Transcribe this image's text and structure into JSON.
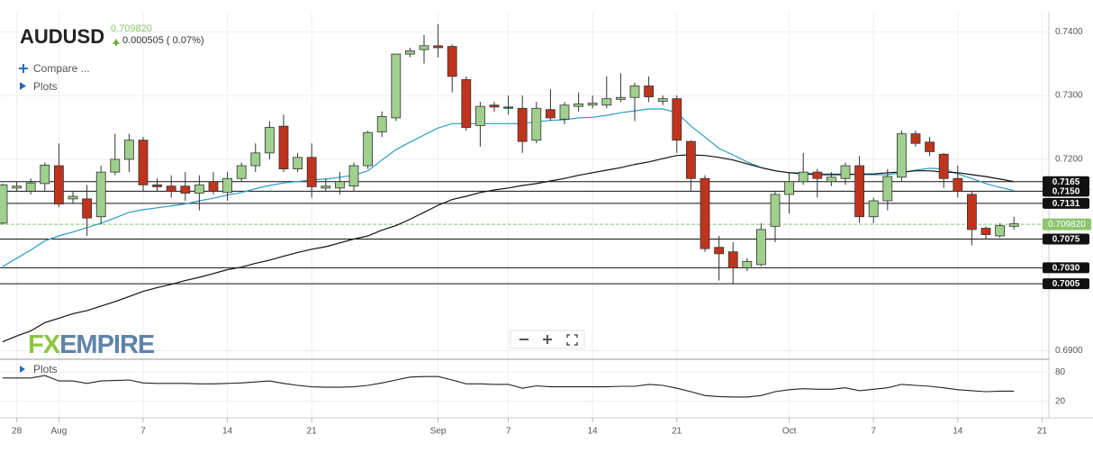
{
  "chart_data": [
    {
      "type": "candlestick",
      "title": "AUDUSD",
      "last": {
        "value": 0.70982,
        "label": "0.709820"
      },
      "last_color": "#8cc56e",
      "change": "0.000505 ( 0.07%)",
      "controls": [
        "Compare ...",
        "Plots"
      ],
      "logo": [
        "FX",
        "EMPIRE"
      ],
      "categories": [
        null,
        "28",
        null,
        null,
        "Aug",
        null,
        null,
        null,
        null,
        null,
        "7",
        null,
        null,
        null,
        null,
        null,
        "14",
        null,
        null,
        null,
        null,
        null,
        "21",
        null,
        null,
        null,
        null,
        null,
        null,
        null,
        null,
        "Sep",
        null,
        null,
        null,
        null,
        "7",
        null,
        null,
        null,
        null,
        null,
        "14",
        null,
        null,
        null,
        null,
        null,
        "21",
        null,
        null,
        null,
        null,
        null,
        null,
        null,
        "Oct",
        null,
        null,
        null,
        null,
        null,
        "7",
        null,
        null,
        null,
        null,
        null,
        "14",
        null,
        null,
        null,
        null,
        null,
        "21"
      ],
      "open": [
        0.71,
        0.7155,
        0.715,
        0.7162,
        0.719,
        0.7138,
        0.7138,
        0.711,
        0.718,
        0.72,
        0.723,
        0.716,
        0.7158,
        0.7158,
        0.7147,
        0.7165,
        0.7148,
        0.717,
        0.719,
        0.721,
        0.7252,
        0.7185,
        0.7203,
        0.7155,
        0.7155,
        0.7158,
        0.719,
        0.7243,
        0.7265,
        0.7365,
        0.7372,
        0.7378,
        0.7377,
        0.7325,
        0.7253,
        0.7285,
        0.7282,
        0.728,
        0.723,
        0.7278,
        0.7263,
        0.7283,
        0.7285,
        0.7285,
        0.7294,
        0.7297,
        0.7315,
        0.7291,
        0.7295,
        0.7228,
        0.717,
        0.7062,
        0.7055,
        0.703,
        0.7035,
        0.7095,
        0.7145,
        0.7165,
        0.718,
        0.7165,
        0.717,
        0.719,
        0.711,
        0.7135,
        0.7172,
        0.724,
        0.7227,
        0.7208,
        0.717,
        0.7145,
        0.7092,
        0.708,
        0.7095,
        null,
        null
      ],
      "high": [
        0.7162,
        0.7165,
        0.717,
        0.7195,
        0.7225,
        0.715,
        0.716,
        0.719,
        0.724,
        0.724,
        0.7235,
        0.717,
        0.7175,
        0.718,
        0.7175,
        0.718,
        0.718,
        0.7195,
        0.7225,
        0.726,
        0.727,
        0.721,
        0.7225,
        0.717,
        0.718,
        0.7195,
        0.7245,
        0.7275,
        0.7365,
        0.7375,
        0.7395,
        0.7412,
        0.738,
        0.733,
        0.729,
        0.729,
        0.73,
        0.73,
        0.729,
        0.731,
        0.729,
        0.7305,
        0.73,
        0.733,
        0.7335,
        0.732,
        0.733,
        0.73,
        0.73,
        0.723,
        0.7175,
        0.708,
        0.707,
        0.7045,
        0.71,
        0.715,
        0.718,
        0.721,
        0.7185,
        0.718,
        0.7195,
        0.7205,
        0.714,
        0.7185,
        0.7245,
        0.7245,
        0.7235,
        0.721,
        0.719,
        0.715,
        0.7095,
        0.71,
        0.711,
        null,
        null
      ],
      "low": [
        0.7098,
        0.715,
        0.7145,
        0.715,
        0.7125,
        0.713,
        0.708,
        0.7098,
        0.7175,
        0.718,
        0.715,
        0.715,
        0.714,
        0.7135,
        0.712,
        0.7145,
        0.7135,
        0.7165,
        0.718,
        0.72,
        0.718,
        0.718,
        0.714,
        0.715,
        0.7145,
        0.715,
        0.7185,
        0.7235,
        0.726,
        0.736,
        0.735,
        0.736,
        0.7305,
        0.7245,
        0.722,
        0.7275,
        0.727,
        0.721,
        0.7225,
        0.726,
        0.7255,
        0.7275,
        0.728,
        0.728,
        0.729,
        0.726,
        0.729,
        0.7285,
        0.721,
        0.715,
        0.7055,
        0.701,
        0.7005,
        0.7025,
        0.7032,
        0.707,
        0.7115,
        0.716,
        0.714,
        0.7158,
        0.716,
        0.71,
        0.71,
        0.712,
        0.7165,
        0.722,
        0.7205,
        0.7155,
        0.714,
        0.7065,
        0.7075,
        0.7077,
        0.709,
        null,
        null
      ],
      "close": [
        0.716,
        0.7158,
        0.7163,
        0.7191,
        0.713,
        0.7142,
        0.7108,
        0.718,
        0.72,
        0.723,
        0.716,
        0.7157,
        0.715,
        0.7147,
        0.716,
        0.715,
        0.717,
        0.719,
        0.721,
        0.725,
        0.7185,
        0.7203,
        0.7157,
        0.7158,
        0.7165,
        0.719,
        0.7242,
        0.7267,
        0.7365,
        0.737,
        0.7378,
        0.7375,
        0.733,
        0.725,
        0.7283,
        0.7282,
        0.728,
        0.7228,
        0.728,
        0.7265,
        0.7285,
        0.7287,
        0.7288,
        0.7295,
        0.7297,
        0.7315,
        0.7298,
        0.7295,
        0.723,
        0.717,
        0.706,
        0.7052,
        0.703,
        0.704,
        0.709,
        0.7145,
        0.7165,
        0.718,
        0.717,
        0.7172,
        0.719,
        0.711,
        0.7135,
        0.7173,
        0.724,
        0.7225,
        0.7212,
        0.717,
        0.715,
        0.709,
        0.7082,
        0.7096,
        0.7099,
        null,
        null
      ],
      "up_color": "#9fd08d",
      "down_color": "#c0341d",
      "series": [
        {
          "color": "#2b9cc4",
          "values": [
            0.7032,
            0.7045,
            0.7058,
            0.7072,
            0.708,
            0.7086,
            0.7093,
            0.71,
            0.7108,
            0.7117,
            0.7121,
            0.7124,
            0.7127,
            0.713,
            0.7135,
            0.7139,
            0.7144,
            0.7148,
            0.7154,
            0.7159,
            0.7163,
            0.7165,
            0.7168,
            0.7169,
            0.7172,
            0.7175,
            0.7182,
            0.7199,
            0.7215,
            0.7227,
            0.7238,
            0.7249,
            0.7256,
            0.7256,
            0.7256,
            0.7256,
            0.7256,
            0.7256,
            0.7259,
            0.7261,
            0.7262,
            0.7265,
            0.7266,
            0.7269,
            0.7273,
            0.7276,
            0.7279,
            0.7279,
            0.7273,
            0.7252,
            0.7235,
            0.7217,
            0.7207,
            0.7196,
            0.7187,
            0.7182,
            0.7179,
            0.7179,
            0.7177,
            0.7177,
            0.7177,
            0.7176,
            0.7176,
            0.7176,
            0.7179,
            0.7183,
            0.7186,
            0.7185,
            0.7177,
            0.717,
            0.7162,
            0.7156,
            0.7151,
            null,
            null
          ]
        },
        {
          "color": "#111111",
          "values": [
            0.6914,
            0.6923,
            0.6931,
            0.6944,
            0.6951,
            0.6958,
            0.6963,
            0.697,
            0.6977,
            0.6985,
            0.6993,
            0.6999,
            0.7004,
            0.701,
            0.7015,
            0.7021,
            0.7027,
            0.7031,
            0.7037,
            0.7042,
            0.7048,
            0.7054,
            0.7059,
            0.7063,
            0.7069,
            0.7075,
            0.708,
            0.7089,
            0.7096,
            0.7106,
            0.7117,
            0.7128,
            0.7137,
            0.7142,
            0.7148,
            0.7152,
            0.7155,
            0.7159,
            0.7162,
            0.7166,
            0.717,
            0.7175,
            0.7179,
            0.7183,
            0.7187,
            0.7192,
            0.7196,
            0.7201,
            0.7206,
            0.7207,
            0.7206,
            0.7203,
            0.7199,
            0.7193,
            0.7187,
            0.7182,
            0.7179,
            0.7177,
            0.7176,
            0.7176,
            0.7176,
            0.7177,
            0.7177,
            0.7179,
            0.718,
            0.7182,
            0.7182,
            0.718,
            0.7179,
            0.7176,
            0.7173,
            0.7169,
            0.7165,
            null,
            null
          ]
        }
      ],
      "levels": [
        {
          "value": 0.7165,
          "label": "0.7165"
        },
        {
          "value": 0.715,
          "label": "0.7150"
        },
        {
          "value": 0.7131,
          "label": "0.7131"
        },
        {
          "value": 0.7075,
          "label": "0.7075"
        },
        {
          "value": 0.703,
          "label": "0.7030"
        },
        {
          "value": 0.7005,
          "label": "0.7005"
        }
      ],
      "ylim": [
        0.6888,
        0.743
      ],
      "yticks": [
        {
          "value": 0.74,
          "label": "0.7400"
        },
        {
          "value": 0.73,
          "label": "0.7300"
        },
        {
          "value": 0.72,
          "label": "0.7200"
        },
        {
          "value": 0.69,
          "label": "0.6900"
        }
      ],
      "grid": true
    },
    {
      "type": "line",
      "label": "Plots",
      "color": "#222222",
      "values": [
        68,
        68,
        68,
        73,
        62,
        62,
        57,
        62,
        63,
        64,
        58,
        57,
        57,
        57,
        56,
        56,
        57,
        58,
        60,
        62,
        57,
        53,
        50,
        49,
        49,
        50,
        53,
        58,
        64,
        70,
        71,
        71,
        64,
        56,
        56,
        55,
        55,
        47,
        52,
        50,
        50,
        50,
        50,
        50,
        51,
        51,
        55,
        53,
        47,
        40,
        32,
        30,
        29,
        29,
        32,
        40,
        44,
        46,
        45,
        45,
        48,
        42,
        45,
        48,
        55,
        53,
        51,
        48,
        44,
        42,
        40,
        41,
        41,
        null,
        null
      ],
      "ylim": [
        -11.8,
        104.7
      ],
      "yticks": [
        20,
        80
      ],
      "grid": true
    }
  ]
}
